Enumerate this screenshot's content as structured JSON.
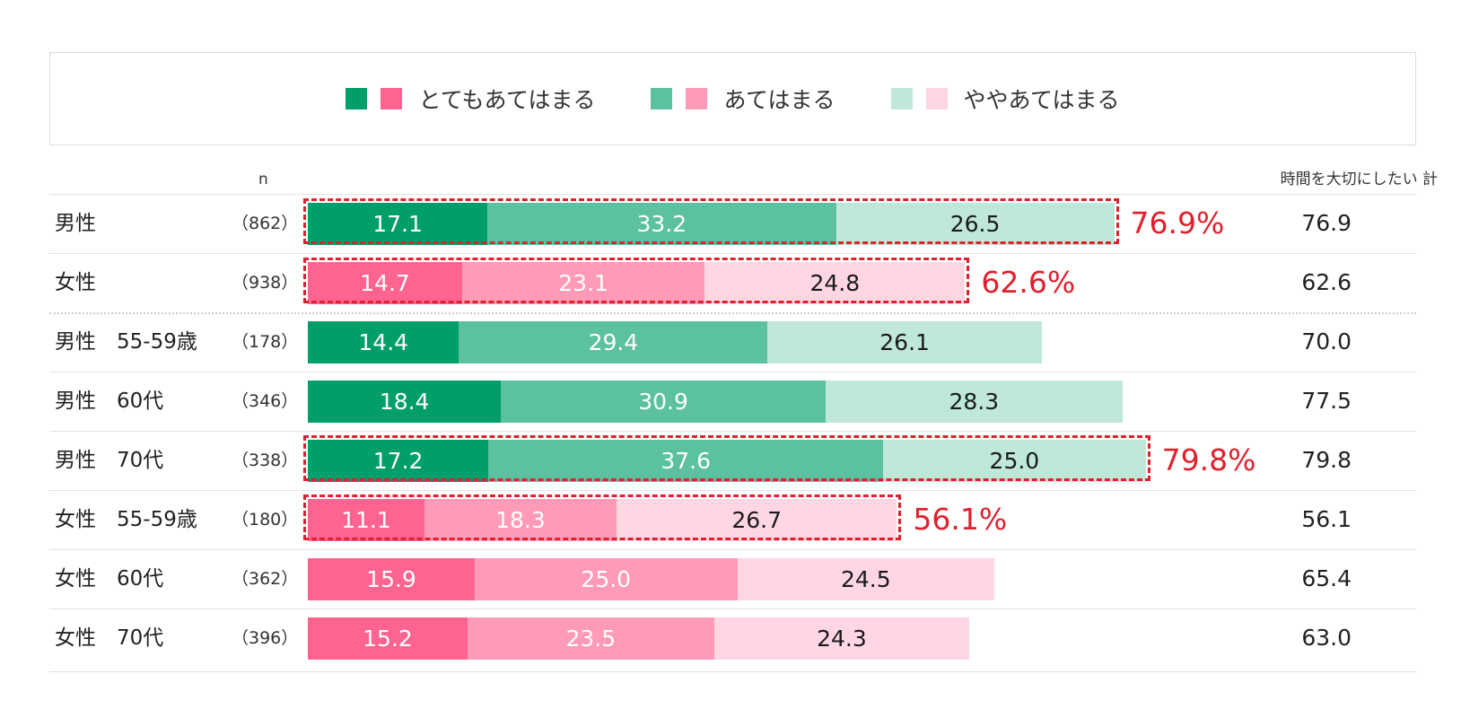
{
  "legend": {
    "items": [
      {
        "label": "とてもあてはまる",
        "male_color": "#009e6a",
        "female_color": "#ff6491"
      },
      {
        "label": "あてはまる",
        "male_color": "#5bc1a1",
        "female_color": "#ff9bb8"
      },
      {
        "label": "ややあてはまる",
        "male_color": "#bfe8da",
        "female_color": "#ffd6e2"
      }
    ]
  },
  "headers": {
    "n": "n",
    "total": "時間を大切にしたい 計"
  },
  "chart_data": {
    "type": "bar",
    "orientation": "horizontal",
    "stacked": true,
    "categories": [
      "男性",
      "女性",
      "男性　55-59歳",
      "男性　60代",
      "男性　70代",
      "女性　55-59歳",
      "女性　60代",
      "女性　70代"
    ],
    "n": [
      "（862）",
      "（938）",
      "（178）",
      "（346）",
      "（338）",
      "（180）",
      "（362）",
      "（396）"
    ],
    "gender": [
      "male",
      "female",
      "male",
      "male",
      "male",
      "female",
      "female",
      "female"
    ],
    "series": [
      {
        "name": "とてもあてはまる",
        "values": [
          17.1,
          14.7,
          14.4,
          18.4,
          17.2,
          11.1,
          15.9,
          15.2
        ]
      },
      {
        "name": "あてはまる",
        "values": [
          33.2,
          23.1,
          29.4,
          30.9,
          37.6,
          18.3,
          25.0,
          23.5
        ]
      },
      {
        "name": "ややあてはまる",
        "values": [
          26.5,
          24.8,
          26.1,
          28.3,
          25.0,
          26.7,
          24.5,
          24.3
        ]
      }
    ],
    "totals": [
      "76.9",
      "62.6",
      "70.0",
      "77.5",
      "79.8",
      "56.1",
      "65.4",
      "63.0"
    ],
    "highlights": [
      {
        "row": 0,
        "label": "76.9%"
      },
      {
        "row": 1,
        "label": "62.6%"
      },
      {
        "row": 4,
        "label": "79.8%"
      },
      {
        "row": 5,
        "label": "56.1%"
      }
    ],
    "xlim": [
      0,
      100
    ]
  }
}
